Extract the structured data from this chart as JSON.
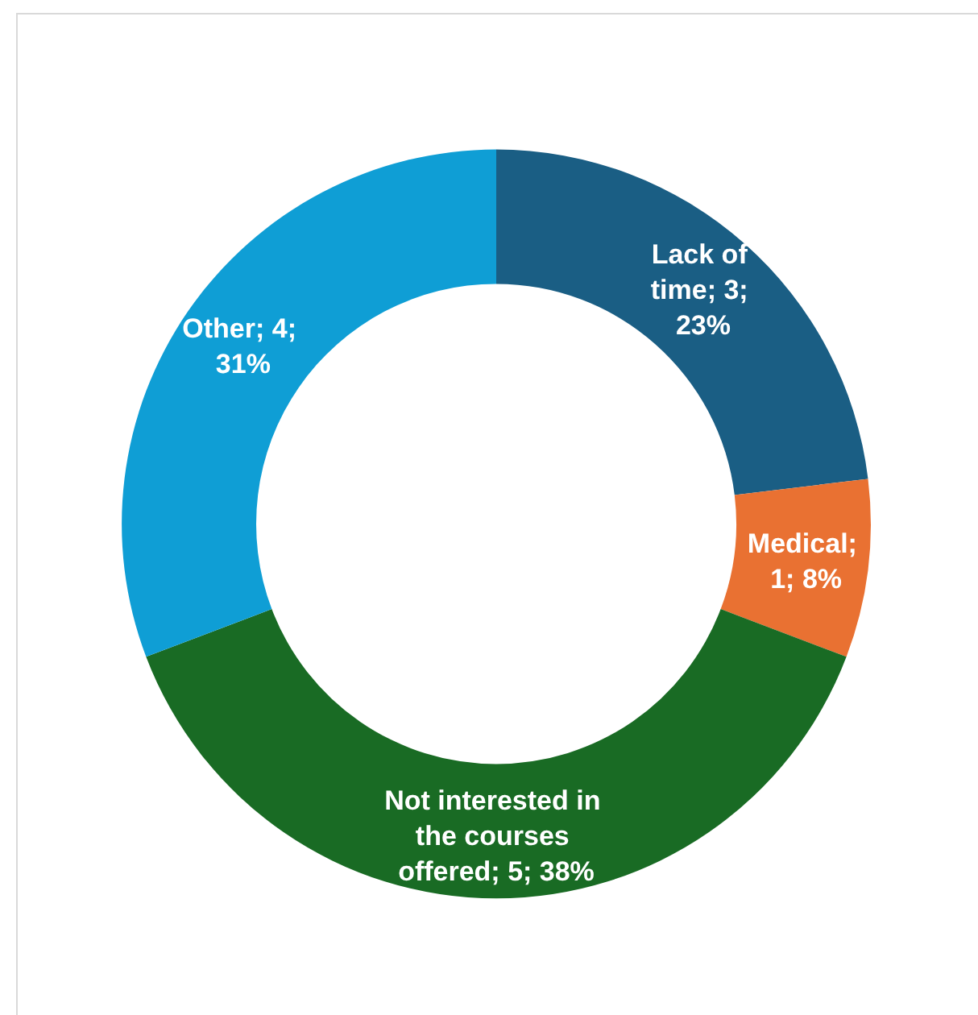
{
  "chart_data": {
    "type": "donut",
    "categories": [
      "Lack of time",
      "Medical",
      "Not interested in the courses offered",
      "Other"
    ],
    "values": [
      3,
      1,
      5,
      4
    ],
    "colors": [
      "#1a5e84",
      "#e97132",
      "#196b24",
      "#0f9ed5"
    ],
    "value_labels": [
      "; 3; 23%",
      "; 1; 8%",
      "; 5; 38%",
      "; 4; 31%"
    ],
    "data_labels": true,
    "legend": false
  }
}
